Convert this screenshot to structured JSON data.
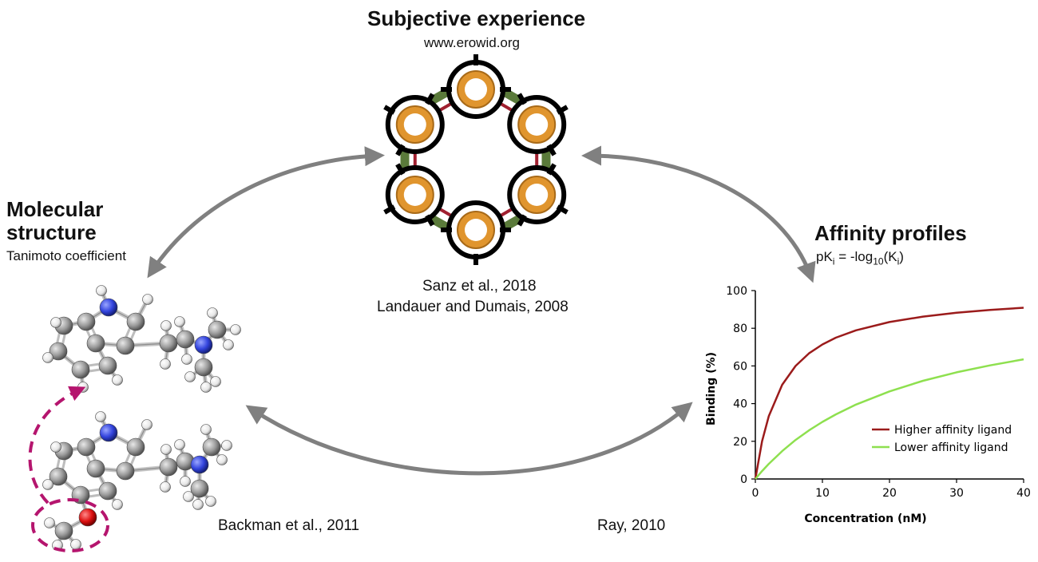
{
  "header": {
    "title": "Subjective experience",
    "subtitle": "www.erowid.org"
  },
  "molecular": {
    "title_line1": "Molecular",
    "title_line2": "structure",
    "subtitle": "Tanimoto coefficient"
  },
  "affinity": {
    "title": "Affinity profiles",
    "formula_prefix": "pK",
    "formula_sub_i": "i",
    "formula_mid": " = -log",
    "formula_sub_10": "10",
    "formula_open": "(K",
    "formula_close": ")"
  },
  "citations": {
    "center_line1": "Sanz et al., 2018",
    "center_line2": "Landauer and Dumais, 2008",
    "bottom_left": "Backman et al., 2011",
    "bottom_right": "Ray, 2010"
  },
  "colors": {
    "arrow": "#808080",
    "higher": "#9b1b1b",
    "lower": "#8ee04f",
    "hexagon": "#5a7a3a",
    "ring_orange": "#e0952e",
    "dashed_magenta": "#b5156e",
    "atom_carbon": "#9a9a9a",
    "atom_nitrogen": "#3344dd",
    "atom_oxygen": "#dd1111"
  },
  "chart_data": {
    "type": "line",
    "xlabel": "Concentration (nM)",
    "ylabel": "Binding (%)",
    "xlim": [
      0,
      40
    ],
    "ylim": [
      0,
      100
    ],
    "xticks": [
      "0",
      "10",
      "20",
      "30",
      "40"
    ],
    "yticks": [
      "0",
      "20",
      "40",
      "60",
      "80",
      "100"
    ],
    "grid": false,
    "legend_position": "lower-right",
    "series": [
      {
        "name": "Higher affinity ligand",
        "color": "#9b1b1b",
        "x": [
          0,
          1,
          2,
          4,
          6,
          8,
          10,
          12,
          15,
          20,
          25,
          30,
          35,
          40
        ],
        "y": [
          0,
          20,
          33.3,
          50,
          60,
          66.7,
          71.4,
          75,
          78.9,
          83.3,
          86.2,
          88.2,
          89.7,
          90.9
        ]
      },
      {
        "name": "Lower affinity ligand",
        "color": "#8ee04f",
        "x": [
          0,
          1,
          2,
          4,
          6,
          8,
          10,
          12,
          15,
          20,
          25,
          30,
          35,
          40
        ],
        "y": [
          0,
          4.2,
          8.0,
          14.8,
          20.7,
          25.8,
          30.3,
          34.3,
          39.5,
          46.5,
          52.1,
          56.6,
          60.3,
          63.5
        ]
      }
    ]
  }
}
